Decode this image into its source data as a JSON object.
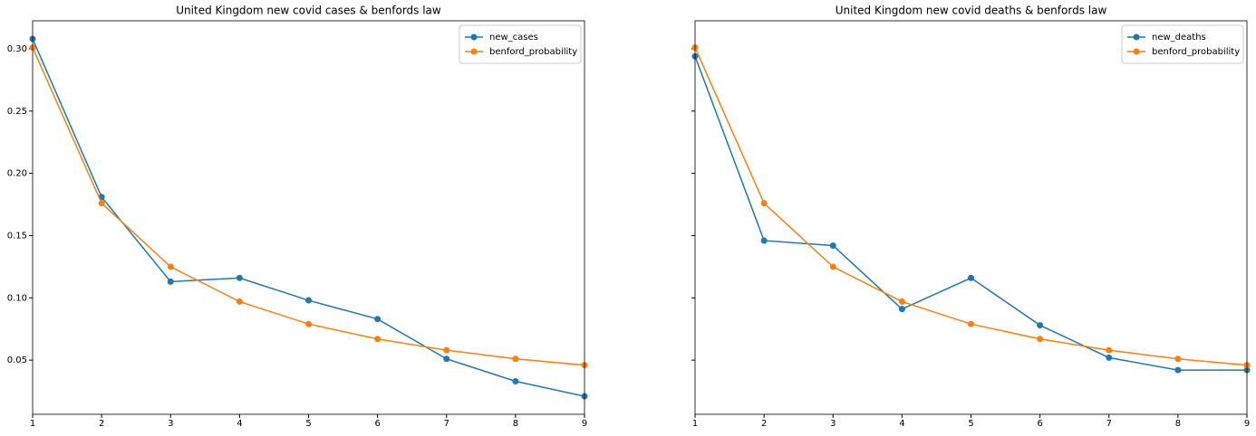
{
  "chart_data": [
    {
      "type": "line",
      "title": "United Kingdom new covid cases & benfords law",
      "x": [
        1,
        2,
        3,
        4,
        5,
        6,
        7,
        8,
        9
      ],
      "series": [
        {
          "name": "new_cases",
          "color": "#1f77b4",
          "values": [
            0.308,
            0.181,
            0.113,
            0.116,
            0.098,
            0.083,
            0.051,
            0.033,
            0.021
          ]
        },
        {
          "name": "benford_probability",
          "color": "#ff7f0e",
          "values": [
            0.301,
            0.176,
            0.125,
            0.097,
            0.079,
            0.067,
            0.058,
            0.051,
            0.046
          ]
        }
      ],
      "xlim": [
        1,
        9
      ],
      "xticks": [
        1,
        2,
        3,
        4,
        5,
        6,
        7,
        8,
        9
      ],
      "ylim": [
        0.0065,
        0.3225
      ],
      "yticks": [
        {
          "value": 0.05,
          "label": "0.05"
        },
        {
          "value": 0.1,
          "label": "0.10"
        },
        {
          "value": 0.15,
          "label": "0.15"
        },
        {
          "value": 0.2,
          "label": "0.20"
        },
        {
          "value": 0.25,
          "label": "0.25"
        },
        {
          "value": 0.3,
          "label": "0.30"
        }
      ],
      "legend": "upper right"
    },
    {
      "type": "line",
      "title": "United Kingdom new covid deaths & benfords law",
      "x": [
        1,
        2,
        3,
        4,
        5,
        6,
        7,
        8,
        9
      ],
      "series": [
        {
          "name": "new_deaths",
          "color": "#1f77b4",
          "values": [
            0.294,
            0.146,
            0.142,
            0.091,
            0.116,
            0.078,
            0.052,
            0.042,
            0.042
          ]
        },
        {
          "name": "benford_probability",
          "color": "#ff7f0e",
          "values": [
            0.301,
            0.176,
            0.125,
            0.097,
            0.079,
            0.067,
            0.058,
            0.051,
            0.046
          ]
        }
      ],
      "xlim": [
        1,
        9
      ],
      "xticks": [
        1,
        2,
        3,
        4,
        5,
        6,
        7,
        8,
        9
      ],
      "ylim": [
        0.0065,
        0.3225
      ],
      "yticks": [
        0.05,
        0.1,
        0.15,
        0.2,
        0.25,
        0.3
      ],
      "legend": "upper right"
    }
  ]
}
